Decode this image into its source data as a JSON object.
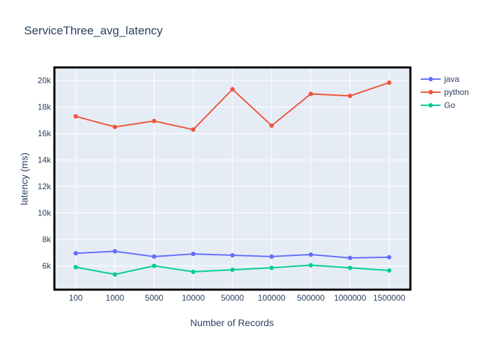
{
  "chart_data": {
    "type": "line",
    "title": "ServiceThree_avg_latency",
    "xlabel": "Number of Records",
    "ylabel": "latency (ms)",
    "categories": [
      "100",
      "1000",
      "5000",
      "10000",
      "50000",
      "100000",
      "500000",
      "1000000",
      "1500000"
    ],
    "ylim": [
      4200,
      21000
    ],
    "yticks": [
      6000,
      8000,
      10000,
      12000,
      14000,
      16000,
      18000,
      20000
    ],
    "ytick_labels": [
      "6k",
      "8k",
      "10k",
      "12k",
      "14k",
      "16k",
      "18k",
      "20k"
    ],
    "grid": true,
    "legend_position": "right",
    "series": [
      {
        "name": "java",
        "color": "#636efa",
        "values": [
          6950,
          7100,
          6700,
          6900,
          6800,
          6700,
          6850,
          6600,
          6650
        ]
      },
      {
        "name": "python",
        "color": "#ef553b",
        "values": [
          17300,
          16500,
          16950,
          16300,
          19350,
          16600,
          19000,
          18850,
          19850
        ]
      },
      {
        "name": "Go",
        "color": "#00cc96",
        "values": [
          5900,
          5350,
          6000,
          5550,
          5700,
          5850,
          6050,
          5850,
          5650
        ]
      }
    ]
  }
}
